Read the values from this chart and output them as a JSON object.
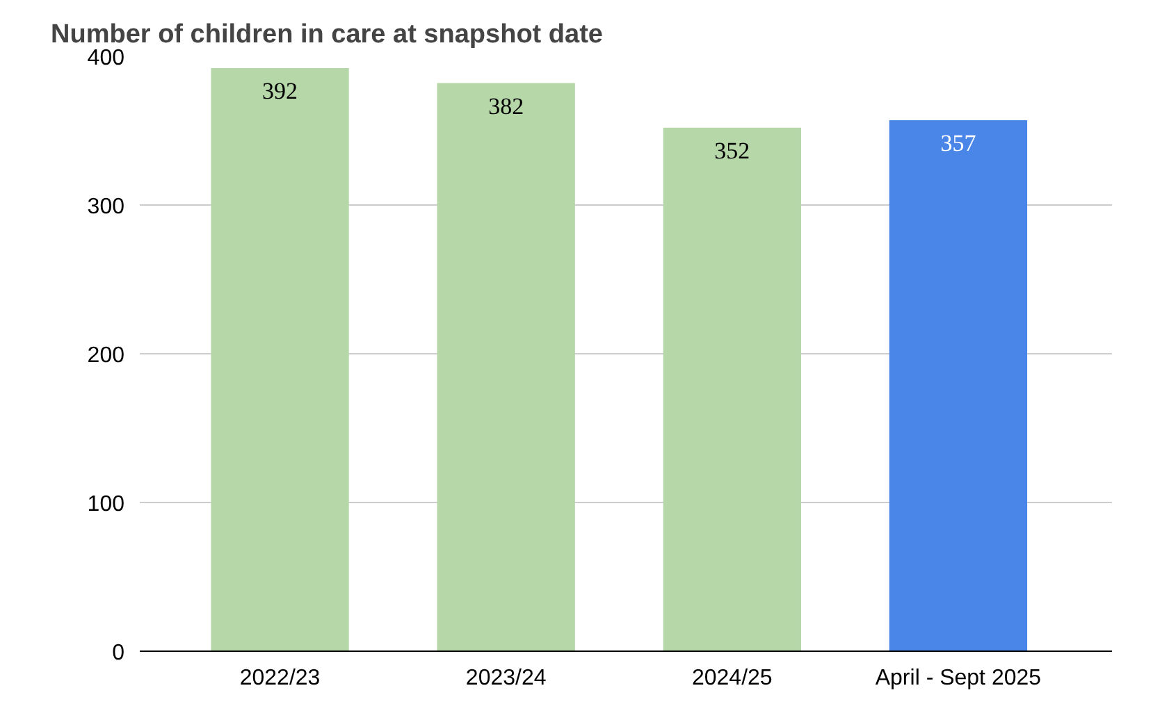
{
  "chart_data": {
    "type": "bar",
    "title": "Number of children in care at snapshot date",
    "categories": [
      "2022/23",
      "2023/24",
      "2024/25",
      "April - Sept 2025"
    ],
    "values": [
      392,
      382,
      352,
      357
    ],
    "colors": [
      "#b6d7a8",
      "#b6d7a8",
      "#b6d7a8",
      "#4a86e8"
    ],
    "ylim": [
      0,
      400
    ],
    "yticks": [
      0,
      100,
      200,
      300,
      400
    ],
    "grid": "y",
    "data_labels": true
  }
}
